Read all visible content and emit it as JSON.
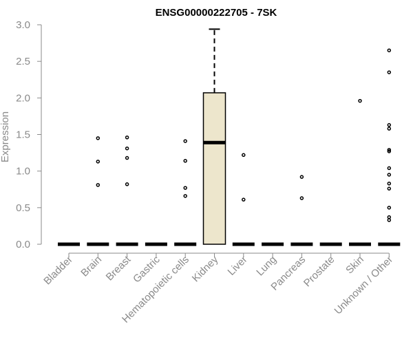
{
  "chart_data": {
    "type": "box",
    "title": "ENSG00000222705 - 7SK",
    "xlabel": "",
    "ylabel": "Expression",
    "ylim": [
      0,
      3.0
    ],
    "yticks": [
      "0.0",
      "0.5",
      "1.0",
      "1.5",
      "2.0",
      "2.5",
      "3.0"
    ],
    "categories": [
      "Bladder",
      "Brain",
      "Breast",
      "Gastric",
      "Hematopoietic cells",
      "Kidney",
      "Liver",
      "Lung",
      "Pancreas",
      "Prostate",
      "Skin",
      "Unknown / Other"
    ],
    "box_fill": "#ede6cc",
    "boxes": [
      {
        "category": "Bladder",
        "min": 0,
        "q1": 0,
        "median": 0,
        "q3": 0,
        "max": 0,
        "outliers": []
      },
      {
        "category": "Brain",
        "min": 0,
        "q1": 0,
        "median": 0,
        "q3": 0,
        "max": 0,
        "outliers": [
          0.81,
          1.13,
          1.45
        ]
      },
      {
        "category": "Breast",
        "min": 0,
        "q1": 0,
        "median": 0,
        "q3": 0,
        "max": 0,
        "outliers": [
          0.82,
          1.18,
          1.31,
          1.46
        ]
      },
      {
        "category": "Gastric",
        "min": 0,
        "q1": 0,
        "median": 0,
        "q3": 0,
        "max": 0,
        "outliers": []
      },
      {
        "category": "Hematopoietic cells",
        "min": 0,
        "q1": 0,
        "median": 0,
        "q3": 0,
        "max": 0,
        "outliers": [
          0.66,
          0.77,
          1.14,
          1.41
        ]
      },
      {
        "category": "Kidney",
        "min": 0,
        "q1": 0,
        "median": 1.39,
        "q3": 2.07,
        "max": 2.94,
        "outliers": []
      },
      {
        "category": "Liver",
        "min": 0,
        "q1": 0,
        "median": 0,
        "q3": 0,
        "max": 0,
        "outliers": [
          0.61,
          1.22
        ]
      },
      {
        "category": "Lung",
        "min": 0,
        "q1": 0,
        "median": 0,
        "q3": 0,
        "max": 0,
        "outliers": []
      },
      {
        "category": "Pancreas",
        "min": 0,
        "q1": 0,
        "median": 0,
        "q3": 0,
        "max": 0,
        "outliers": [
          0.63,
          0.92
        ]
      },
      {
        "category": "Prostate",
        "min": 0,
        "q1": 0,
        "median": 0,
        "q3": 0,
        "max": 0,
        "outliers": []
      },
      {
        "category": "Skin",
        "min": 0,
        "q1": 0,
        "median": 0,
        "q3": 0,
        "max": 0,
        "outliers": [
          1.96
        ]
      },
      {
        "category": "Unknown / Other",
        "min": 0,
        "q1": 0,
        "median": 0,
        "q3": 0,
        "max": 0,
        "outliers": [
          0.33,
          0.37,
          0.5,
          0.76,
          0.83,
          0.95,
          1.04,
          1.27,
          1.29,
          1.58,
          1.63,
          2.35,
          2.65
        ]
      }
    ]
  }
}
